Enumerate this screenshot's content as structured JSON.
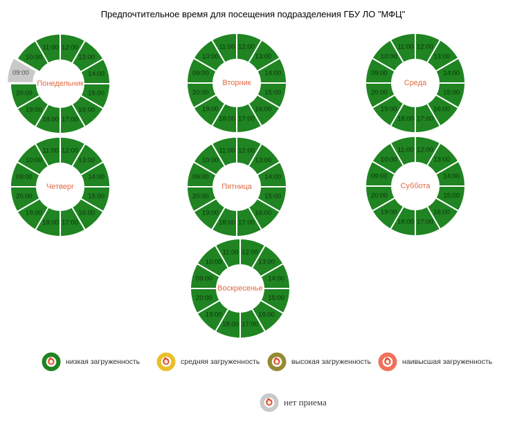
{
  "title": "Предпочтительное время для посещения подразделения ГБУ ЛО \"МФЦ\"",
  "colors": {
    "low": "#1f8421",
    "medium": "#e9bf2b",
    "high": "#958a32",
    "highest": "#f2705b",
    "none": "#c9c9c9",
    "slice_separator": "#ffffff",
    "day_label": "#df6b43",
    "time_label": "rgba(0,0,0,0.62)",
    "flame_outer": "#d94e28",
    "flame_inner": "#fbe9d8"
  },
  "chart_data": [
    {
      "type": "pie",
      "title": "Понедельник",
      "equal_segments": true,
      "slices": [
        {
          "label": "12:00",
          "status": "low"
        },
        {
          "label": "13:00",
          "status": "low"
        },
        {
          "label": "14:00",
          "status": "low"
        },
        {
          "label": "15:00",
          "status": "low"
        },
        {
          "label": "16:00",
          "status": "low"
        },
        {
          "label": "17:00",
          "status": "low"
        },
        {
          "label": "18:00",
          "status": "low"
        },
        {
          "label": "19:00",
          "status": "low"
        },
        {
          "label": "20:00",
          "status": "low"
        },
        {
          "label": "09:00",
          "status": "none",
          "pulled": true
        },
        {
          "label": "10:00",
          "status": "low"
        },
        {
          "label": "11:00",
          "status": "low"
        }
      ]
    },
    {
      "type": "pie",
      "title": "Вторник",
      "equal_segments": true,
      "slices": [
        {
          "label": "12:00",
          "status": "low"
        },
        {
          "label": "13:00",
          "status": "low"
        },
        {
          "label": "14:00",
          "status": "low"
        },
        {
          "label": "15:00",
          "status": "low"
        },
        {
          "label": "16:00",
          "status": "low"
        },
        {
          "label": "17:00",
          "status": "low"
        },
        {
          "label": "18:00",
          "status": "low"
        },
        {
          "label": "19:00",
          "status": "low"
        },
        {
          "label": "20:00",
          "status": "low"
        },
        {
          "label": "09:00",
          "status": "low"
        },
        {
          "label": "10:00",
          "status": "low"
        },
        {
          "label": "11:00",
          "status": "low"
        }
      ]
    },
    {
      "type": "pie",
      "title": "Среда",
      "equal_segments": true,
      "slices": [
        {
          "label": "12:00",
          "status": "low"
        },
        {
          "label": "13:00",
          "status": "low"
        },
        {
          "label": "14:00",
          "status": "low"
        },
        {
          "label": "15:00",
          "status": "low"
        },
        {
          "label": "16:00",
          "status": "low"
        },
        {
          "label": "17:00",
          "status": "low"
        },
        {
          "label": "18:00",
          "status": "low"
        },
        {
          "label": "19:00",
          "status": "low"
        },
        {
          "label": "20:00",
          "status": "low"
        },
        {
          "label": "09:00",
          "status": "low"
        },
        {
          "label": "10:00",
          "status": "low"
        },
        {
          "label": "11:00",
          "status": "low"
        }
      ]
    },
    {
      "type": "pie",
      "title": "Четверг",
      "equal_segments": true,
      "slices": [
        {
          "label": "12:00",
          "status": "low"
        },
        {
          "label": "13:00",
          "status": "low"
        },
        {
          "label": "14:00",
          "status": "low"
        },
        {
          "label": "15:00",
          "status": "low"
        },
        {
          "label": "16:00",
          "status": "low"
        },
        {
          "label": "17:00",
          "status": "low"
        },
        {
          "label": "18:00",
          "status": "low"
        },
        {
          "label": "19:00",
          "status": "low"
        },
        {
          "label": "20:00",
          "status": "low"
        },
        {
          "label": "09:00",
          "status": "low"
        },
        {
          "label": "10:00",
          "status": "low"
        },
        {
          "label": "11:00",
          "status": "low"
        }
      ]
    },
    {
      "type": "pie",
      "title": "Пятница",
      "equal_segments": true,
      "slices": [
        {
          "label": "12:00",
          "status": "low"
        },
        {
          "label": "13:00",
          "status": "low"
        },
        {
          "label": "14:00",
          "status": "low"
        },
        {
          "label": "15:00",
          "status": "low"
        },
        {
          "label": "16:00",
          "status": "low"
        },
        {
          "label": "17:00",
          "status": "low"
        },
        {
          "label": "18:00",
          "status": "low"
        },
        {
          "label": "19:00",
          "status": "low"
        },
        {
          "label": "20:00",
          "status": "low"
        },
        {
          "label": "09:00",
          "status": "low"
        },
        {
          "label": "10:00",
          "status": "low"
        },
        {
          "label": "11:00",
          "status": "low"
        }
      ]
    },
    {
      "type": "pie",
      "title": "Суббота",
      "equal_segments": true,
      "slices": [
        {
          "label": "12:00",
          "status": "low"
        },
        {
          "label": "13:00",
          "status": "low"
        },
        {
          "label": "14:00",
          "status": "low"
        },
        {
          "label": "15:00",
          "status": "low"
        },
        {
          "label": "16:00",
          "status": "low"
        },
        {
          "label": "17:00",
          "status": "low"
        },
        {
          "label": "18:00",
          "status": "low"
        },
        {
          "label": "19:00",
          "status": "low"
        },
        {
          "label": "20:00",
          "status": "low"
        },
        {
          "label": "09:00",
          "status": "low"
        },
        {
          "label": "10:00",
          "status": "low"
        },
        {
          "label": "11:00",
          "status": "low"
        }
      ]
    },
    {
      "type": "pie",
      "title": "Воскресенье",
      "equal_segments": true,
      "slices": [
        {
          "label": "12:00",
          "status": "low"
        },
        {
          "label": "13:00",
          "status": "low"
        },
        {
          "label": "14:00",
          "status": "low"
        },
        {
          "label": "15:00",
          "status": "low"
        },
        {
          "label": "16:00",
          "status": "low"
        },
        {
          "label": "17:00",
          "status": "low"
        },
        {
          "label": "18:00",
          "status": "low"
        },
        {
          "label": "19:00",
          "status": "low"
        },
        {
          "label": "20:00",
          "status": "low"
        },
        {
          "label": "09:00",
          "status": "low"
        },
        {
          "label": "10:00",
          "status": "low"
        },
        {
          "label": "11:00",
          "status": "low"
        }
      ]
    }
  ],
  "legend": {
    "items": [
      {
        "label": "низкая загруженность",
        "status": "low"
      },
      {
        "label": "средняя загруженность",
        "status": "medium"
      },
      {
        "label": "высокая загруженность",
        "status": "high"
      },
      {
        "label": "наивысшая загруженность",
        "status": "highest"
      }
    ],
    "extra": {
      "label": "нет приема",
      "status": "none"
    }
  }
}
